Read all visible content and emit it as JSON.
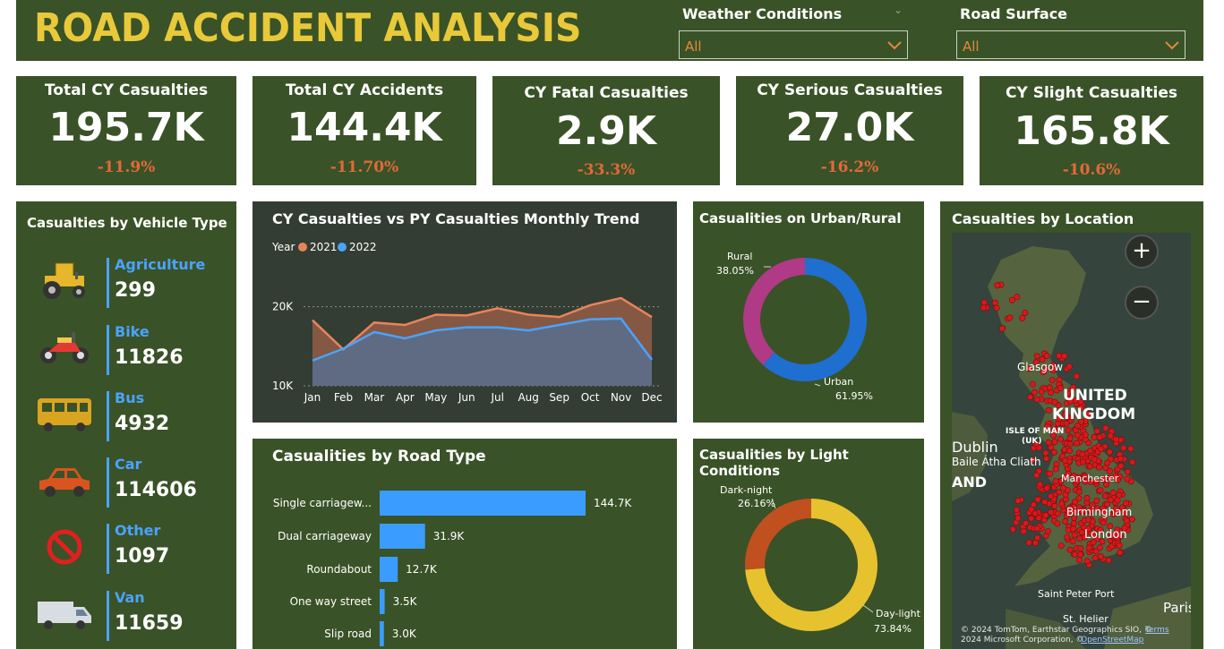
{
  "header": {
    "title": "ROAD ACCIDENT ANALYSIS",
    "filters": [
      {
        "label": "Weather Conditions",
        "value": "All"
      },
      {
        "label": "Road Surface",
        "value": "All"
      }
    ]
  },
  "kpis": [
    {
      "title": "Total CY Casualties",
      "value": "195.7K",
      "delta": "-11.9%"
    },
    {
      "title": "Total CY Accidents",
      "value": "144.4K",
      "delta": "-11.70%"
    },
    {
      "title": "CY Fatal Casualties",
      "value": "2.9K",
      "delta": "-33.3%"
    },
    {
      "title": "CY Serious Casualties",
      "value": "27.0K",
      "delta": "-16.2%"
    },
    {
      "title": "CY Slight Casualties",
      "value": "165.8K",
      "delta": "-10.6%"
    }
  ],
  "vehicles": {
    "title": "Casualties by Vehicle Type",
    "items": [
      {
        "name": "Agriculture",
        "count": "299",
        "icon": "tractor-icon"
      },
      {
        "name": "Bike",
        "count": "11826",
        "icon": "motorbike-icon"
      },
      {
        "name": "Bus",
        "count": "4932",
        "icon": "bus-icon"
      },
      {
        "name": "Car",
        "count": "114606",
        "icon": "car-icon"
      },
      {
        "name": "Other",
        "count": "1097",
        "icon": "prohibited-icon"
      },
      {
        "name": "Van",
        "count": "11659",
        "icon": "van-icon"
      }
    ]
  },
  "colors": {
    "panel": "#3a5227",
    "title_yellow": "#e8c93a",
    "delta_red": "#e06a3a",
    "accent_blue": "#4aa3ff",
    "series_2021": "#e8845a",
    "series_2022": "#4aa3ff",
    "urban": "#1f6fd1",
    "rural": "#b03a86",
    "daylight": "#e5c22e",
    "darknight": "#c0501f"
  },
  "chart_data": [
    {
      "type": "area",
      "title": "CY Casualties vs PY Casualties Monthly Trend",
      "legend_title": "Year",
      "legend_position": "top-left",
      "categories": [
        "Jan",
        "Feb",
        "Mar",
        "Apr",
        "May",
        "Jun",
        "Jul",
        "Aug",
        "Sep",
        "Oct",
        "Nov",
        "Dec"
      ],
      "series": [
        {
          "name": "2021",
          "values": [
            18300,
            14600,
            18000,
            17700,
            19000,
            18900,
            19800,
            19000,
            18700,
            20200,
            21100,
            18700
          ]
        },
        {
          "name": "2022",
          "values": [
            13200,
            14700,
            16800,
            16000,
            17000,
            17400,
            17400,
            17000,
            17700,
            18400,
            18500,
            13300
          ]
        }
      ],
      "ylim": [
        10000,
        22000
      ],
      "yticks": [
        "10K",
        "20K"
      ],
      "grid": true
    },
    {
      "type": "pie",
      "title": "Casualities on Urban/Rural",
      "labels": [
        "Rural",
        "Urban"
      ],
      "values": [
        38.05,
        61.95
      ],
      "value_labels": [
        "38.05%",
        "61.95%"
      ]
    },
    {
      "type": "bar",
      "title": "Casualities by Road Type",
      "orientation": "horizontal",
      "categories": [
        "Single carriagew...",
        "Dual carriageway",
        "Roundabout",
        "One way street",
        "Slip road"
      ],
      "values": [
        144.7,
        31.9,
        12.7,
        3.5,
        3.0
      ],
      "value_labels": [
        "144.7K",
        "31.9K",
        "12.7K",
        "3.5K",
        "3.0K"
      ]
    },
    {
      "type": "pie",
      "title": "Casualities by Light Conditions",
      "labels": [
        "Dark-night",
        "Day-light"
      ],
      "values": [
        26.16,
        73.84
      ],
      "value_labels": [
        "26.16%",
        "73.84%"
      ]
    }
  ],
  "map": {
    "title": "Casualties by Location",
    "zoom_in": "+",
    "zoom_out": "−",
    "labels": {
      "glasgow": "Glasgow",
      "uk_line1": "UNITED",
      "uk_line2": "KINGDOM",
      "isle": "ISLE OF MAN",
      "isle_sub": "(UK)",
      "dublin": "Dublin",
      "baile": "Baile Átha Cliath",
      "ireland": "AND",
      "birmingham": "Birmingham",
      "london": "London",
      "manchester": "Manchester",
      "stpeter": "Saint Peter Port",
      "sthelier": "St. Helier",
      "paris": "Paris"
    },
    "attribution_1": "© 2024 TomTom, Earthstar Geographics SIO, ©",
    "attribution_2": "2024 Microsoft Corporation, ©",
    "attribution_osm": "OpenStreetMap",
    "attribution_terms": "Terms"
  }
}
